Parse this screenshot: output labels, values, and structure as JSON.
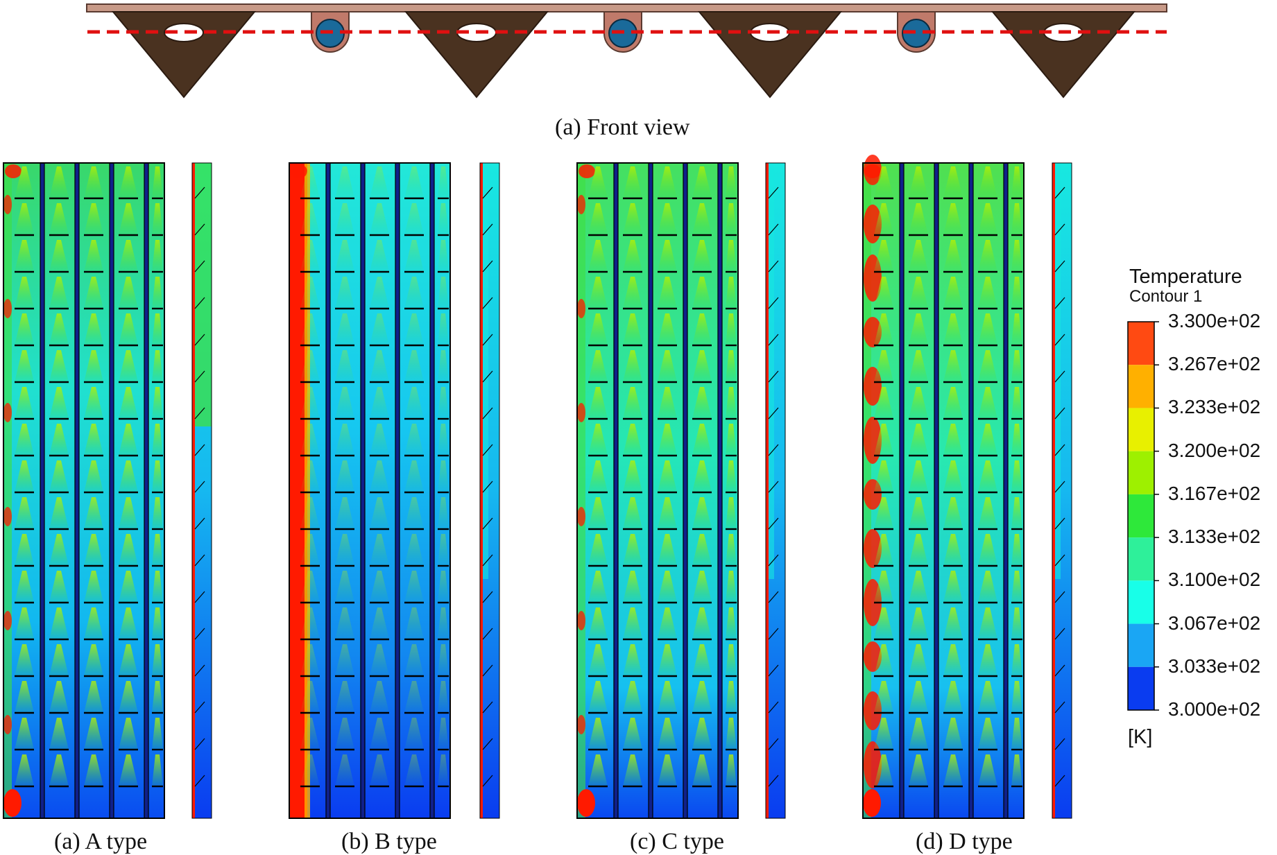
{
  "captions": {
    "front_view": "(a) Front view",
    "a_type": "(a) A type",
    "b_type": "(b) B type",
    "c_type": "(c) C type",
    "d_type": "(d) D type"
  },
  "legend": {
    "title": "Temperature",
    "subtitle": "Contour 1",
    "unit": "[K]",
    "labels": [
      "3.300e+02",
      "3.267e+02",
      "3.233e+02",
      "3.200e+02",
      "3.167e+02",
      "3.133e+02",
      "3.100e+02",
      "3.067e+02",
      "3.033e+02",
      "3.000e+02"
    ],
    "colors": [
      "#ff4a12",
      "#ffb000",
      "#e8f000",
      "#9ef000",
      "#2ee83a",
      "#2ef09a",
      "#18ffe8",
      "#1aa6f4",
      "#0a3cf0"
    ]
  },
  "palette": {
    "hot": "#ff1a00",
    "warm": "#ffb000",
    "yellow": "#e8f000",
    "green": "#3fe040",
    "cyan": "#18e8e0",
    "light_blue": "#1aa6f4",
    "blue": "#0a3cf0",
    "fin_brown": "#4a3220",
    "tube_blue": "#1a6a9a",
    "tube_copper": "#c07a6a",
    "plate": "#c89a88",
    "dash_red": "#e01010"
  }
}
